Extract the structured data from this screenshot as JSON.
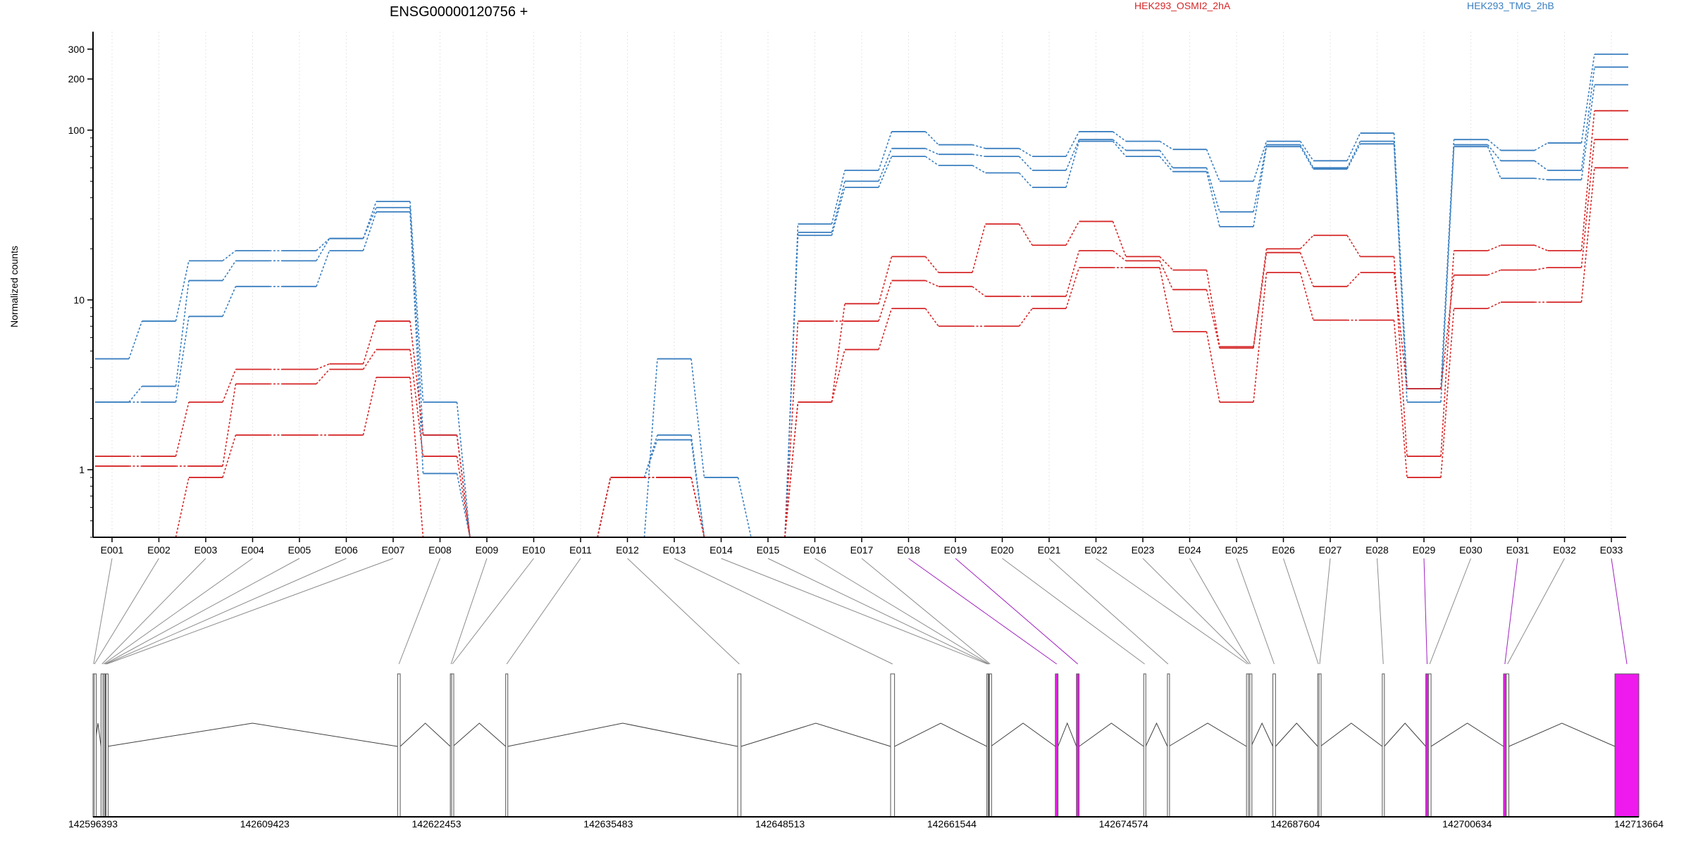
{
  "chart_data": {
    "type": "line",
    "title": "ENSG00000120756 +",
    "ylabel": "Normalized counts",
    "xlabel": "",
    "yscale": "log",
    "ylim": [
      0.4,
      380
    ],
    "yticks": [
      1,
      10,
      100,
      200,
      300
    ],
    "ytick_labels": [
      "1",
      "10",
      "100",
      "200",
      "300"
    ],
    "categories": [
      "E001",
      "E002",
      "E003",
      "E004",
      "E005",
      "E006",
      "E007",
      "E008",
      "E009",
      "E010",
      "E011",
      "E012",
      "E013",
      "E014",
      "E015",
      "E016",
      "E017",
      "E018",
      "E019",
      "E020",
      "E021",
      "E022",
      "E023",
      "E024",
      "E025",
      "E026",
      "E027",
      "E028",
      "E029",
      "E030",
      "E031",
      "E032",
      "E033"
    ],
    "legend": [
      {
        "label": "HEK293_OSMI2_2hA",
        "color": "#d62728"
      },
      {
        "label": "HEK293_TMG_2hB",
        "color": "#3a7fc0"
      }
    ],
    "series": [
      {
        "group": 1,
        "color": "#3a7fc0",
        "values": [
          4.5,
          7.5,
          17,
          19.5,
          19.5,
          23,
          38,
          2.5,
          0.4,
          0.4,
          0.4,
          0.4,
          4.5,
          0.9,
          0.4,
          28,
          58,
          98,
          82,
          78,
          70,
          98,
          86,
          77,
          50,
          86,
          66,
          96,
          3,
          88,
          76,
          84,
          280
        ]
      },
      {
        "group": 1,
        "color": "#3a7fc0",
        "values": [
          2.5,
          3.1,
          13,
          17,
          17,
          23,
          35,
          1.6,
          0.4,
          0.4,
          0.4,
          0.9,
          1.6,
          0.4,
          0.4,
          25,
          50,
          78,
          72,
          70,
          58,
          88,
          76,
          60,
          33,
          82,
          60,
          86,
          3,
          82,
          66,
          58,
          235
        ]
      },
      {
        "group": 1,
        "color": "#3a7fc0",
        "values": [
          2.5,
          2.5,
          8,
          12,
          12,
          19.5,
          33,
          0.95,
          0.4,
          0.4,
          0.4,
          0.9,
          1.5,
          0.4,
          0.4,
          24,
          46,
          70,
          62,
          56,
          46,
          86,
          70,
          57,
          27,
          80,
          59,
          83,
          2.5,
          80,
          52,
          51,
          185
        ]
      },
      {
        "group": 0,
        "color": "#d62728",
        "values": [
          1.2,
          1.2,
          2.5,
          3.9,
          3.9,
          4.2,
          7.5,
          1.6,
          0.4,
          0.4,
          0.4,
          0.9,
          0.9,
          0.4,
          0.4,
          2.5,
          9.5,
          18,
          14.5,
          28,
          21,
          29,
          18,
          15,
          5.3,
          20,
          24,
          18,
          1.2,
          19.5,
          21,
          19.5,
          130
        ]
      },
      {
        "group": 0,
        "color": "#d62728",
        "values": [
          1.05,
          1.05,
          1.05,
          3.2,
          3.2,
          3.9,
          5.1,
          1.2,
          0.4,
          0.4,
          0.4,
          0.9,
          0.9,
          0.4,
          0.4,
          7.5,
          7.5,
          13,
          12,
          10.5,
          10.5,
          19.5,
          17,
          11.5,
          5.2,
          19,
          12,
          14.5,
          3,
          14,
          15,
          15.5,
          88
        ]
      },
      {
        "group": 0,
        "color": "#d62728",
        "values": [
          0.4,
          0.4,
          0.9,
          1.6,
          1.6,
          1.6,
          3.5,
          0.4,
          0.4,
          0.4,
          0.4,
          0.9,
          0.9,
          0.4,
          0.4,
          2.5,
          5.1,
          8.9,
          7,
          7,
          8.9,
          15.5,
          15.5,
          6.5,
          2.5,
          14.5,
          7.6,
          7.6,
          0.9,
          8.9,
          9.7,
          9.7,
          60
        ]
      }
    ],
    "genomic_axis": {
      "tick_labels": [
        "142596393",
        "142609423",
        "142622453",
        "142635483",
        "142648513",
        "142661544",
        "142674574",
        "142687604",
        "142700634",
        "142713664"
      ],
      "range": [
        142596393,
        142713664
      ]
    },
    "exons": [
      {
        "id": "E001",
        "start": 142596393,
        "end": 142596480,
        "highlight": false
      },
      {
        "id": "E002",
        "start": 142596480,
        "end": 142596530,
        "highlight": false
      },
      {
        "id": "E003",
        "start": 142597000,
        "end": 142597150,
        "highlight": false
      },
      {
        "id": "E004",
        "start": 142597150,
        "end": 142597250,
        "highlight": false
      },
      {
        "id": "E005",
        "start": 142597250,
        "end": 142597330,
        "highlight": false
      },
      {
        "id": "E006",
        "start": 142597330,
        "end": 142597380,
        "highlight": false
      },
      {
        "id": "E007",
        "start": 142597380,
        "end": 142597480,
        "highlight": false
      },
      {
        "id": "E008",
        "start": 142619500,
        "end": 142619700,
        "highlight": false
      },
      {
        "id": "E009",
        "start": 142623500,
        "end": 142623600,
        "highlight": false
      },
      {
        "id": "E010",
        "start": 142623600,
        "end": 142623700,
        "highlight": false
      },
      {
        "id": "E011",
        "start": 142627700,
        "end": 142627850,
        "highlight": false
      },
      {
        "id": "E012",
        "start": 142645300,
        "end": 142645550,
        "highlight": false
      },
      {
        "id": "E013",
        "start": 142656900,
        "end": 142657200,
        "highlight": false
      },
      {
        "id": "E014",
        "start": 142664200,
        "end": 142664300,
        "highlight": false
      },
      {
        "id": "E015",
        "start": 142664300,
        "end": 142664350,
        "highlight": false
      },
      {
        "id": "E016",
        "start": 142664350,
        "end": 142664400,
        "highlight": false
      },
      {
        "id": "E017",
        "start": 142664400,
        "end": 142664500,
        "highlight": false
      },
      {
        "id": "E018",
        "start": 142669400,
        "end": 142669600,
        "highlight": true
      },
      {
        "id": "E019",
        "start": 142671000,
        "end": 142671200,
        "highlight": true
      },
      {
        "id": "E020",
        "start": 142676100,
        "end": 142676250,
        "highlight": false
      },
      {
        "id": "E021",
        "start": 142677900,
        "end": 142678000,
        "highlight": false
      },
      {
        "id": "E022",
        "start": 142683900,
        "end": 142684050,
        "highlight": false
      },
      {
        "id": "E023",
        "start": 142684050,
        "end": 142684150,
        "highlight": false
      },
      {
        "id": "E024",
        "start": 142684150,
        "end": 142684250,
        "highlight": false
      },
      {
        "id": "E025",
        "start": 142685900,
        "end": 142686100,
        "highlight": false
      },
      {
        "id": "E026",
        "start": 142689300,
        "end": 142689400,
        "highlight": false
      },
      {
        "id": "E027",
        "start": 142689400,
        "end": 142689500,
        "highlight": false
      },
      {
        "id": "E028",
        "start": 142694200,
        "end": 142694350,
        "highlight": false
      },
      {
        "id": "E029",
        "start": 142697500,
        "end": 142697700,
        "highlight": true
      },
      {
        "id": "E030",
        "start": 142697700,
        "end": 142697900,
        "highlight": false
      },
      {
        "id": "E031",
        "start": 142703400,
        "end": 142703600,
        "highlight": true
      },
      {
        "id": "E032",
        "start": 142703600,
        "end": 142703800,
        "highlight": false
      },
      {
        "id": "E033",
        "start": 142711850,
        "end": 142713664,
        "highlight": true
      }
    ]
  },
  "colors": {
    "highlight_exon": "#ee1aee",
    "highlight_link": "#a020c0",
    "link": "#8c8c8c",
    "axis": "#000000",
    "grid": "#e6e6e6"
  }
}
